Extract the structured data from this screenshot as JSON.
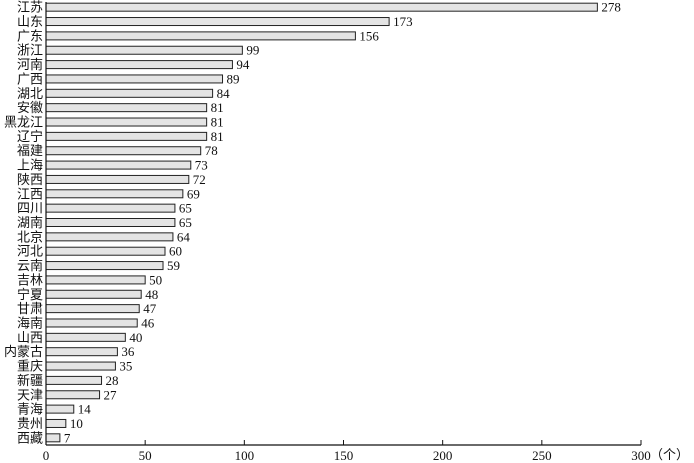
{
  "chart_data": {
    "type": "bar",
    "orientation": "horizontal",
    "categories": [
      "江苏",
      "山东",
      "广东",
      "浙江",
      "河南",
      "广西",
      "湖北",
      "安徽",
      "黑龙江",
      "辽宁",
      "福建",
      "上海",
      "陕西",
      "江西",
      "四川",
      "湖南",
      "北京",
      "河北",
      "云南",
      "吉林",
      "宁夏",
      "甘肃",
      "海南",
      "山西",
      "内蒙古",
      "重庆",
      "新疆",
      "天津",
      "青海",
      "贵州",
      "西藏"
    ],
    "values": [
      278,
      173,
      156,
      99,
      94,
      89,
      84,
      81,
      81,
      81,
      78,
      73,
      72,
      69,
      65,
      65,
      64,
      60,
      59,
      50,
      48,
      47,
      46,
      40,
      36,
      35,
      28,
      27,
      14,
      10,
      7
    ],
    "xlabel": "（个）",
    "ylabel": "",
    "xlim": [
      0,
      300
    ],
    "xticks": [
      0,
      50,
      100,
      150,
      200,
      250,
      300
    ],
    "grid": false,
    "legend": "none",
    "bar_fill": "#e4e4e4",
    "bar_stroke": "#222222"
  }
}
